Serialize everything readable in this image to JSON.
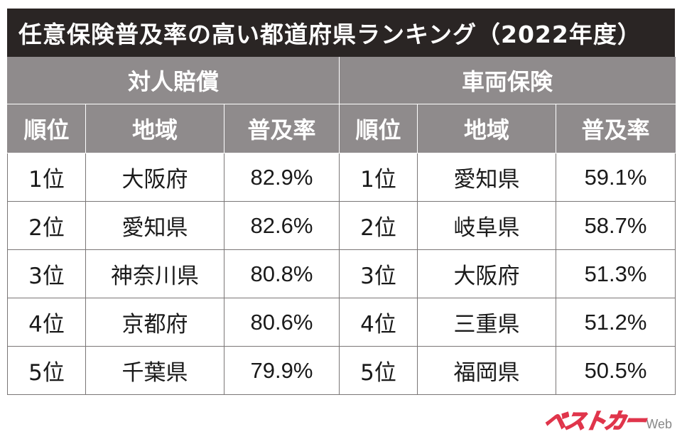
{
  "title": "任意保険普及率の高い都道府県ランキング（2022年度）",
  "groups": [
    {
      "label": "対人賠償",
      "columns": [
        "順位",
        "地域",
        "普及率"
      ],
      "rows": [
        {
          "rank": "1位",
          "region": "大阪府",
          "rate": "82.9%"
        },
        {
          "rank": "2位",
          "region": "愛知県",
          "rate": "82.6%"
        },
        {
          "rank": "3位",
          "region": "神奈川県",
          "rate": "80.8%"
        },
        {
          "rank": "4位",
          "region": "京都府",
          "rate": "80.6%"
        },
        {
          "rank": "5位",
          "region": "千葉県",
          "rate": "79.9%"
        }
      ]
    },
    {
      "label": "車両保険",
      "columns": [
        "順位",
        "地域",
        "普及率"
      ],
      "rows": [
        {
          "rank": "1位",
          "region": "愛知県",
          "rate": "59.1%"
        },
        {
          "rank": "2位",
          "region": "岐阜県",
          "rate": "58.7%"
        },
        {
          "rank": "3位",
          "region": "大阪府",
          "rate": "51.3%"
        },
        {
          "rank": "4位",
          "region": "三重県",
          "rate": "51.2%"
        },
        {
          "rank": "5位",
          "region": "福岡県",
          "rate": "50.5%"
        }
      ]
    }
  ],
  "watermark": {
    "main": "ベストカー",
    "sub": "Web",
    "color": "#e0354b"
  },
  "colors": {
    "title_bg": "#2a2524",
    "header_bg": "#8f8b8c",
    "border": "#7a7676"
  }
}
